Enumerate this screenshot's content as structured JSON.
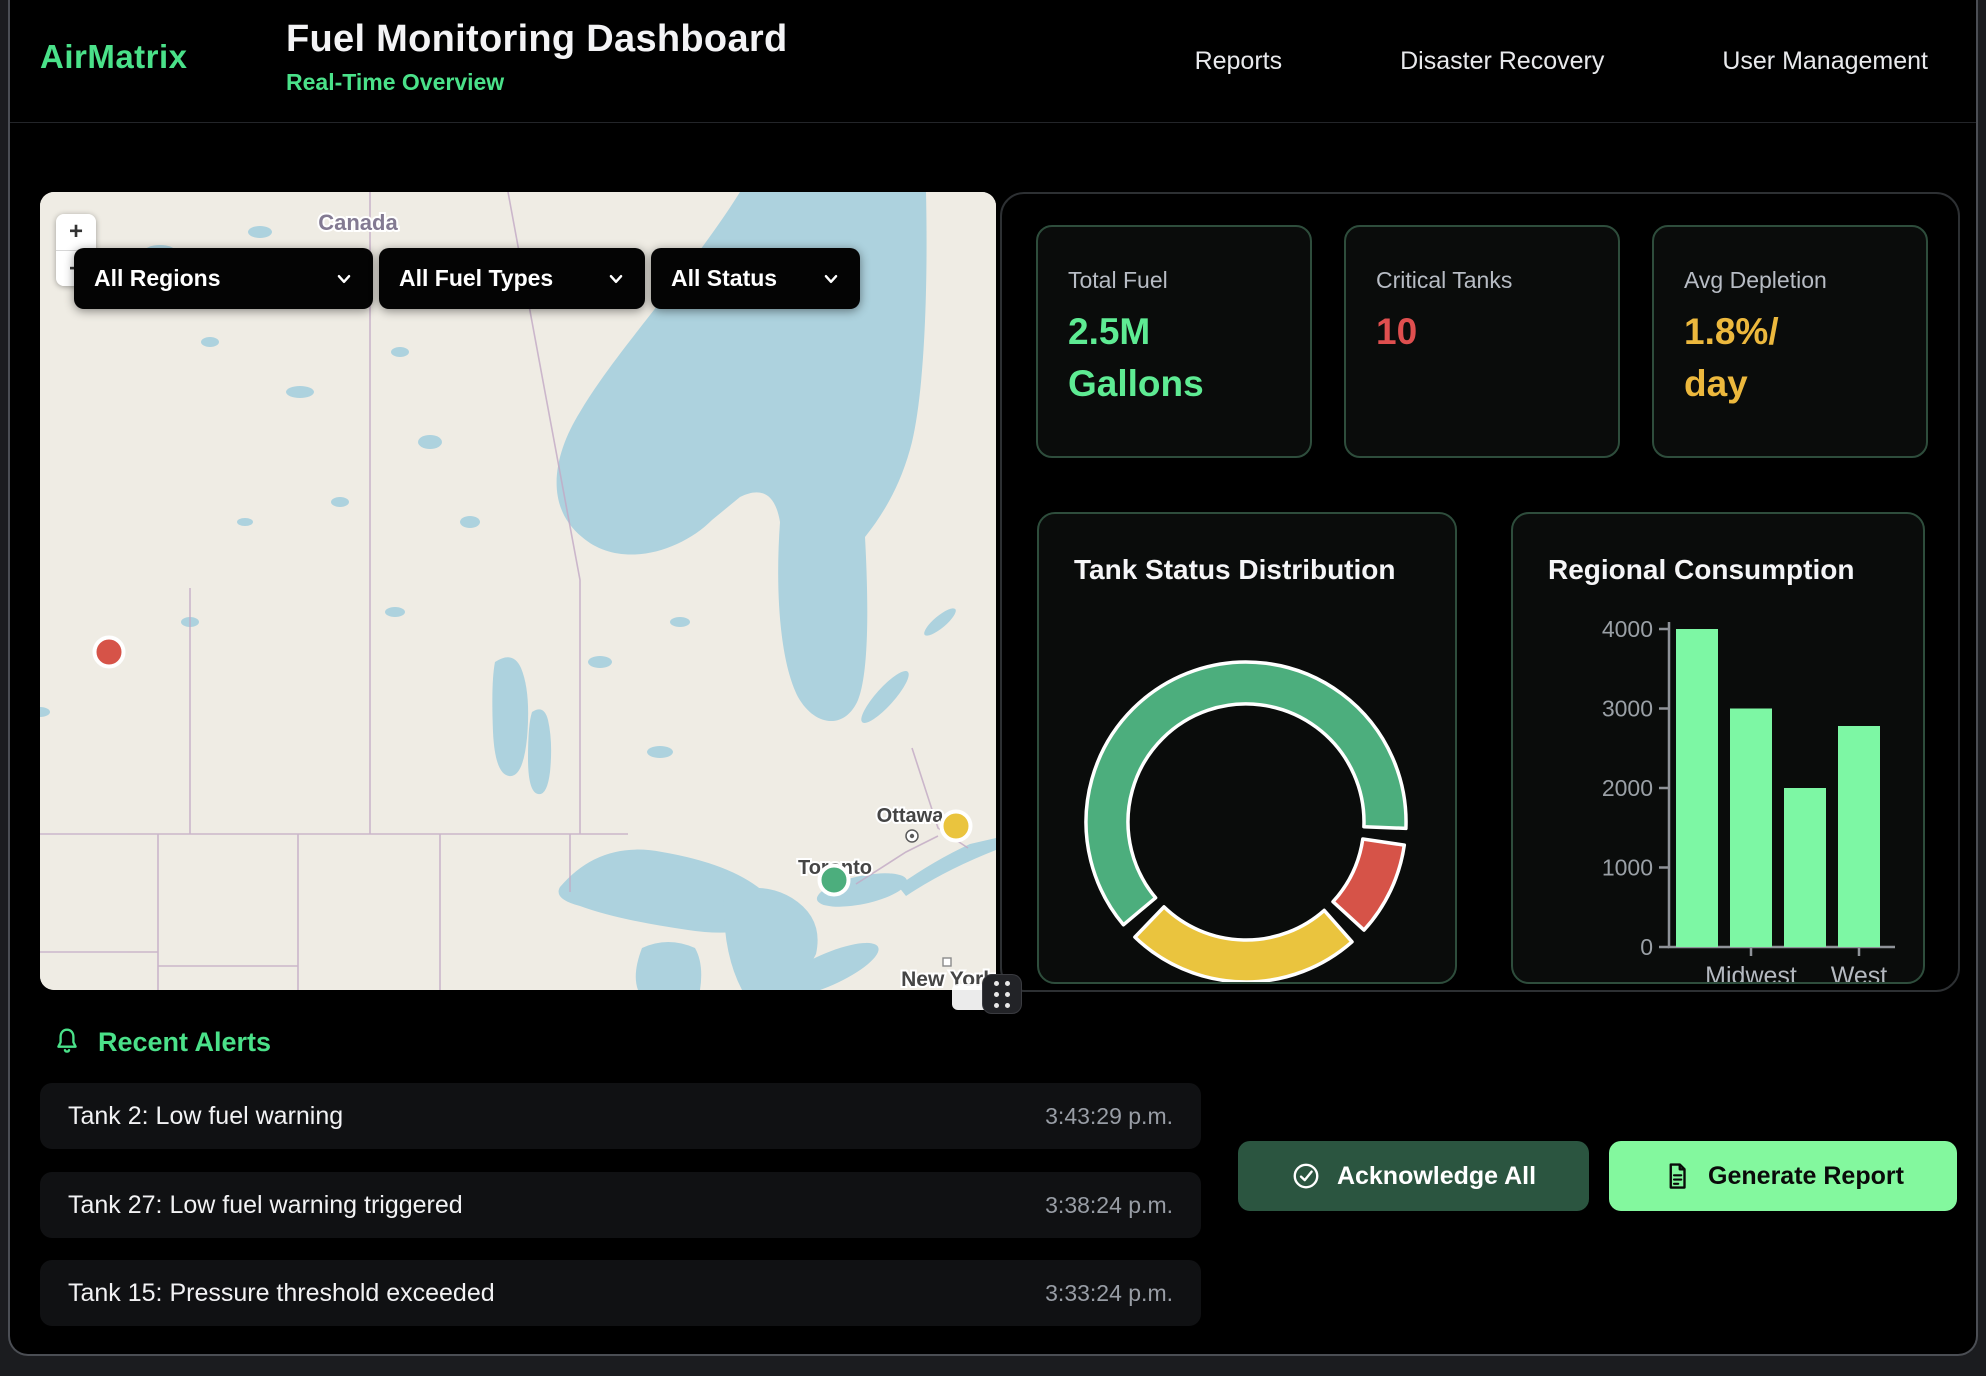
{
  "header": {
    "logo": "AirMatrix",
    "title": "Fuel Monitoring Dashboard",
    "subtitle": "Real-Time Overview",
    "nav": [
      {
        "label": "Reports"
      },
      {
        "label": "Disaster Recovery"
      },
      {
        "label": "User Management"
      }
    ]
  },
  "map": {
    "zoom_in": "+",
    "zoom_out": "−",
    "filters": [
      {
        "label": "All Regions"
      },
      {
        "label": "All Fuel Types"
      },
      {
        "label": "All Status"
      }
    ],
    "country_label": "Canada",
    "city_labels": [
      "Ottawa",
      "Toronto",
      "New York"
    ],
    "markers": [
      {
        "status": "critical",
        "color": "#d65348"
      },
      {
        "status": "warning",
        "color": "#eac43e"
      },
      {
        "status": "normal",
        "color": "#4cae7d"
      }
    ],
    "land_color": "#efece4",
    "water_color": "#add2de"
  },
  "stats": [
    {
      "label": "Total Fuel",
      "value_line1": "2.5M",
      "value_line2": "Gallons",
      "color": "#5eeb93"
    },
    {
      "label": "Critical Tanks",
      "value_line1": "10",
      "value_line2": "",
      "color": "#df4f4f"
    },
    {
      "label": "Avg Depletion",
      "value_line1": "1.8%/",
      "value_line2": "day",
      "color": "#ecb83d"
    }
  ],
  "chart_data": [
    {
      "type": "pie",
      "title": "Tank Status Distribution",
      "donut": true,
      "start_angle": 230,
      "legend": "none",
      "segments": [
        {
          "name": "normal",
          "value": 65,
          "color": "#4cae7d"
        },
        {
          "name": "critical",
          "value": 10,
          "color": "#d65348"
        },
        {
          "name": "warning",
          "value": 25,
          "color": "#eac43e"
        }
      ]
    },
    {
      "type": "bar",
      "title": "Regional Consumption",
      "categories": [
        "",
        "Midwest",
        "",
        "West"
      ],
      "values": [
        4000,
        3000,
        2000,
        2780
      ],
      "ylim": [
        0,
        4000
      ],
      "yticks": [
        0,
        1000,
        2000,
        3000,
        4000
      ],
      "grid": false,
      "legend": "none",
      "bar_color": "#7df7a4",
      "axis_color": "#8e9298"
    }
  ],
  "alerts": {
    "heading": "Recent Alerts",
    "items": [
      {
        "message": "Tank 2: Low fuel warning",
        "time": "3:43:29 p.m."
      },
      {
        "message": "Tank 27: Low fuel warning triggered",
        "time": "3:38:24 p.m."
      },
      {
        "message": "Tank 15: Pressure threshold exceeded",
        "time": "3:33:24 p.m."
      }
    ]
  },
  "actions": {
    "acknowledge": "Acknowledge All",
    "generate": "Generate Report"
  },
  "colors": {
    "accent_green": "#4ae189",
    "bright_button_green": "#83f89e",
    "dark_button_green": "#2b5540",
    "card_border_green": "#2e4d3c"
  }
}
